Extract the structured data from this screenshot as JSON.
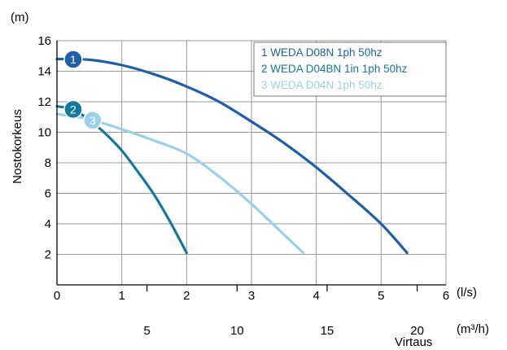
{
  "chart_data": {
    "type": "line",
    "title": "",
    "ylabel": "Nostokorkeus",
    "y_unit": "(m)",
    "x_unit": "(l/s)",
    "x2_unit": "(m³/h)",
    "x2_label": "Virtaus",
    "xlim": [
      0,
      6
    ],
    "ylim": [
      0,
      16
    ],
    "x_ticks": [
      0,
      1,
      2,
      3,
      4,
      5,
      6
    ],
    "y_ticks": [
      2,
      4,
      6,
      8,
      10,
      12,
      14,
      16
    ],
    "x2_ticks": [
      5,
      10,
      15,
      20
    ],
    "grid": true,
    "legend_position": "top-right",
    "colors": {
      "series1": "#1f5fa6",
      "series2": "#15789c",
      "series3": "#9ccfe9",
      "grid": "#9a9a9a",
      "axis": "#000000"
    },
    "series": [
      {
        "name": "1 WEDA D08N 1ph 50hz",
        "marker": "1",
        "color": "#1f5fa6",
        "points": [
          [
            0,
            14.8
          ],
          [
            0.5,
            14.75
          ],
          [
            1,
            14.4
          ],
          [
            1.5,
            13.8
          ],
          [
            2,
            13.0
          ],
          [
            2.5,
            12.0
          ],
          [
            3,
            10.7
          ],
          [
            3.5,
            9.3
          ],
          [
            4,
            7.7
          ],
          [
            4.5,
            5.9
          ],
          [
            5,
            4.0
          ],
          [
            5.4,
            2.1
          ]
        ]
      },
      {
        "name": "2 WEDA D04BN 1in 1ph 50hz",
        "marker": "2",
        "color": "#15789c",
        "points": [
          [
            0,
            11.7
          ],
          [
            0.25,
            11.5
          ],
          [
            0.5,
            10.8
          ],
          [
            0.75,
            9.9
          ],
          [
            1,
            8.8
          ],
          [
            1.25,
            7.4
          ],
          [
            1.5,
            5.9
          ],
          [
            1.75,
            4.1
          ],
          [
            2,
            2.1
          ]
        ]
      },
      {
        "name": "3 WEDA D04N 1ph 50hz",
        "marker": "3",
        "color": "#9ccfe9",
        "points": [
          [
            0,
            11.2
          ],
          [
            0.5,
            10.85
          ],
          [
            1,
            10.2
          ],
          [
            1.5,
            9.45
          ],
          [
            2,
            8.6
          ],
          [
            2.5,
            7.1
          ],
          [
            3,
            5.3
          ],
          [
            3.5,
            3.3
          ],
          [
            3.8,
            2.1
          ]
        ]
      }
    ]
  }
}
